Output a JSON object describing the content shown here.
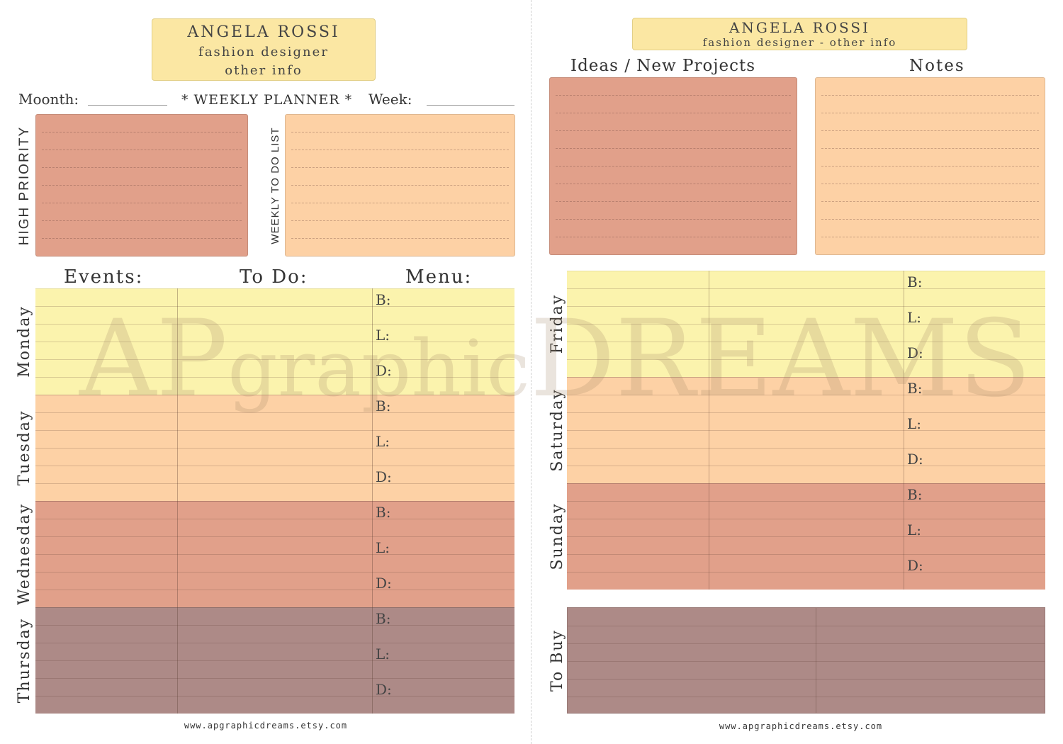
{
  "left_page": {
    "header": {
      "name": "ANGELA ROSSI",
      "line1": "fashion designer",
      "line2": "other info"
    },
    "month_label": "Moonth:",
    "planner_title": "* WEEKLY PLANNER *",
    "week_label": "Week:",
    "high_priority_label": "HIGH PRIORITY",
    "todo_list_label": "WEEKLY TO DO LIST",
    "col_events": "Events:",
    "col_todo": "To Do:",
    "col_menu": "Menu:",
    "days": [
      {
        "name": "Monday",
        "color": "#fbf3ad"
      },
      {
        "name": "Tuesday",
        "color": "#fdd1a5"
      },
      {
        "name": "Wednesday",
        "color": "#e1a08a"
      },
      {
        "name": "Thursday",
        "color": "#ad8a87"
      }
    ],
    "footer": "www.apgraphicdreams.etsy.com"
  },
  "right_page": {
    "header": {
      "name": "ANGELA ROSSI",
      "line1": "fashion designer - other info"
    },
    "ideas_label": "Ideas / New Projects",
    "notes_label": "Notes",
    "days": [
      {
        "name": "Friday",
        "color": "#fbf3ad"
      },
      {
        "name": "Saturday",
        "color": "#fdd1a5"
      },
      {
        "name": "Sunday",
        "color": "#e1a08a"
      }
    ],
    "to_buy_label": "To Buy",
    "footer": "www.apgraphicdreams.etsy.com"
  },
  "meals": {
    "breakfast": "B:",
    "lunch": "L:",
    "dinner": "D:"
  },
  "watermark": {
    "part1": "AP",
    "part2": "graphic",
    "part3": "DREAMS"
  },
  "colors": {
    "yellow": "#fbf3ad",
    "peach": "#fdd1a5",
    "terracotta": "#e1a08a",
    "mauve": "#ad8a87",
    "header": "#fbe7a3"
  }
}
